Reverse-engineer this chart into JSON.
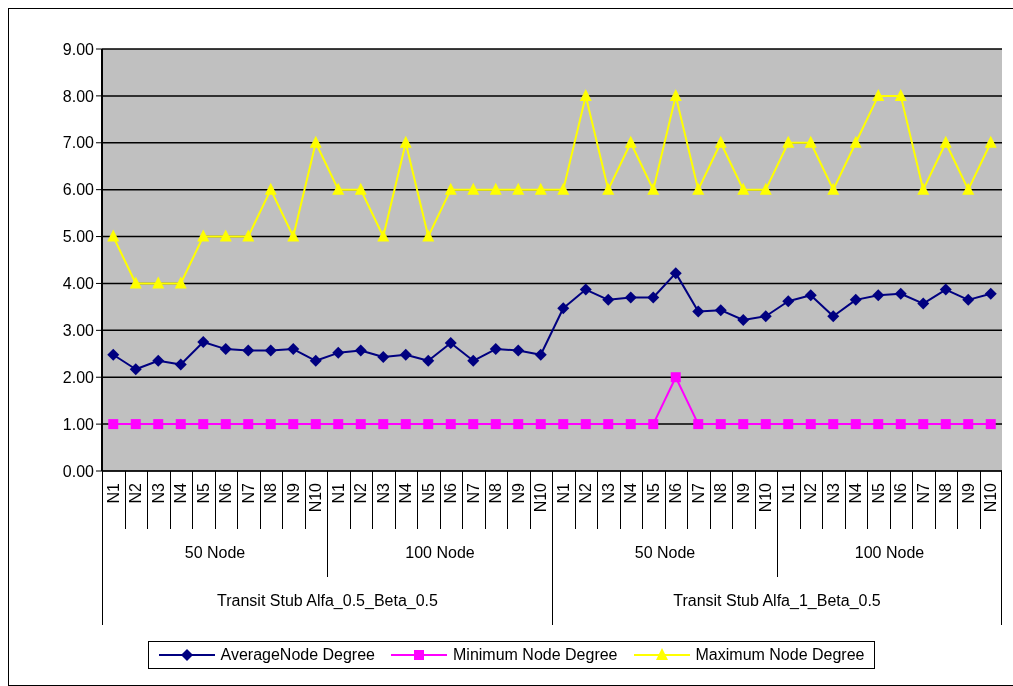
{
  "chart_data": {
    "type": "line",
    "categories": [
      "N1",
      "N2",
      "N3",
      "N4",
      "N5",
      "N6",
      "N7",
      "N8",
      "N9",
      "N10",
      "N1",
      "N2",
      "N3",
      "N4",
      "N5",
      "N6",
      "N7",
      "N8",
      "N9",
      "N10",
      "N1",
      "N2",
      "N3",
      "N4",
      "N5",
      "N6",
      "N7",
      "N8",
      "N9",
      "N10",
      "N1",
      "N2",
      "N3",
      "N4",
      "N5",
      "N6",
      "N7",
      "N8",
      "N9",
      "N10"
    ],
    "series": [
      {
        "name": "AverageNode Degree",
        "color": "#000080",
        "marker": "diamond",
        "values": [
          2.48,
          2.17,
          2.35,
          2.27,
          2.75,
          2.6,
          2.57,
          2.57,
          2.6,
          2.35,
          2.52,
          2.57,
          2.43,
          2.48,
          2.35,
          2.73,
          2.35,
          2.6,
          2.57,
          2.48,
          3.47,
          3.87,
          3.65,
          3.7,
          3.7,
          4.22,
          3.4,
          3.43,
          3.22,
          3.3,
          3.62,
          3.75,
          3.3,
          3.65,
          3.75,
          3.78,
          3.57,
          3.87,
          3.65,
          3.78
        ]
      },
      {
        "name": "Minimum Node Degree",
        "color": "#ff00ff",
        "marker": "square",
        "values": [
          1,
          1,
          1,
          1,
          1,
          1,
          1,
          1,
          1,
          1,
          1,
          1,
          1,
          1,
          1,
          1,
          1,
          1,
          1,
          1,
          1,
          1,
          1,
          1,
          1,
          2,
          1,
          1,
          1,
          1,
          1,
          1,
          1,
          1,
          1,
          1,
          1,
          1,
          1,
          1
        ]
      },
      {
        "name": "Maximum Node Degree",
        "color": "#ffff00",
        "marker": "triangle",
        "values": [
          5,
          4,
          4,
          4,
          5,
          5,
          5,
          6,
          5,
          7,
          6,
          6,
          5,
          7,
          5,
          6,
          6,
          6,
          6,
          6,
          6,
          8,
          6,
          7,
          6,
          8,
          6,
          7,
          6,
          6,
          7,
          7,
          6,
          7,
          8,
          8,
          6,
          7,
          6,
          7
        ]
      }
    ],
    "annotations": [
      "50 Node",
      "100 Node",
      "50 Node",
      "100 Node",
      "Transit Stub Alfa_0.5_Beta_0.5",
      "Transit Stub Alfa_1_Beta_0.5"
    ],
    "ylim": [
      0,
      9
    ],
    "yticks": [
      {
        "value": 0,
        "label": "0.00"
      },
      {
        "value": 1,
        "label": "1.00"
      },
      {
        "value": 2,
        "label": "2.00"
      },
      {
        "value": 3,
        "label": "3.00"
      },
      {
        "value": 4,
        "label": "4.00"
      },
      {
        "value": 5,
        "label": "5.00"
      },
      {
        "value": 6,
        "label": "6.00"
      },
      {
        "value": 7,
        "label": "7.00"
      },
      {
        "value": 8,
        "label": "8.00"
      },
      {
        "value": 9,
        "label": "9.00"
      }
    ],
    "grid": "y",
    "legend": "bottom"
  }
}
